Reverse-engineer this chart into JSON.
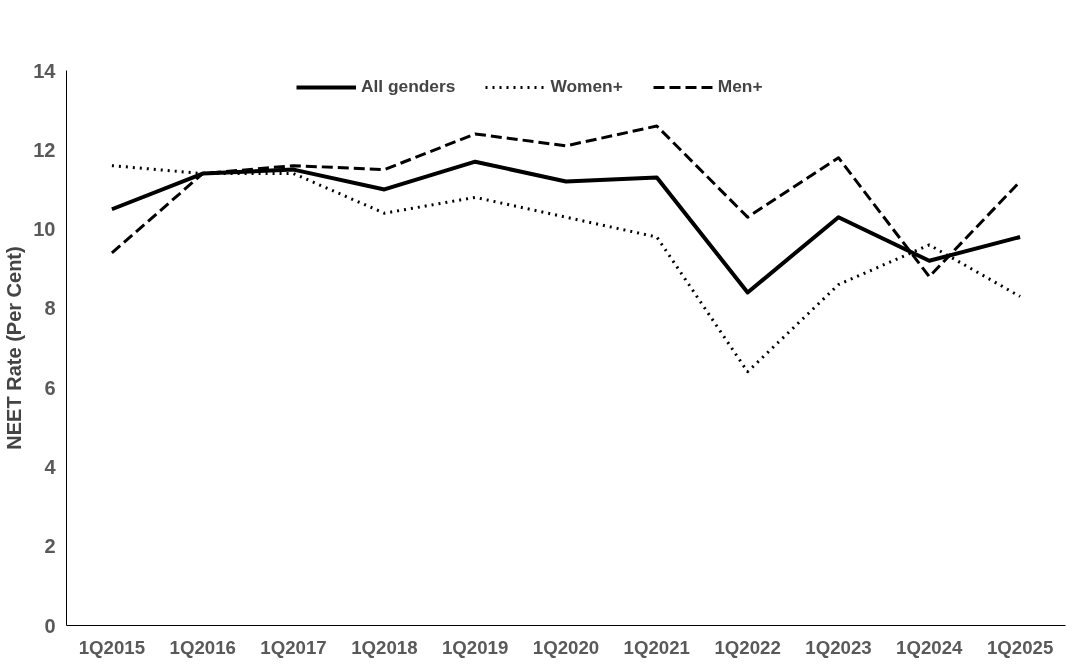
{
  "chart_data": {
    "type": "line",
    "ylabel": "NEET Rate (Per Cent)",
    "categories": [
      "1Q2015",
      "1Q2016",
      "1Q2017",
      "1Q2018",
      "1Q2019",
      "1Q2020",
      "1Q2021",
      "1Q2022",
      "1Q2023",
      "1Q2024",
      "1Q2025"
    ],
    "series": [
      {
        "name": "All genders",
        "color": "#000000",
        "line_style": "solid",
        "values": [
          10.5,
          11.4,
          11.5,
          11.0,
          11.7,
          11.2,
          11.3,
          8.4,
          10.3,
          9.2,
          9.8
        ]
      },
      {
        "name": "Women+",
        "color": "#000000",
        "line_style": "dotted",
        "values": [
          11.6,
          11.4,
          11.4,
          10.4,
          10.8,
          10.3,
          9.8,
          6.4,
          8.6,
          9.6,
          8.3
        ]
      },
      {
        "name": "Men+",
        "color": "#000000",
        "line_style": "dashed",
        "values": [
          9.4,
          11.4,
          11.6,
          11.5,
          12.4,
          12.1,
          12.6,
          10.3,
          11.8,
          8.8,
          11.2
        ]
      }
    ],
    "ylim": [
      0,
      14
    ],
    "yticks": [
      0,
      2,
      4,
      6,
      8,
      10,
      12,
      14
    ],
    "grid": false,
    "legend": "top",
    "marker": "none"
  }
}
